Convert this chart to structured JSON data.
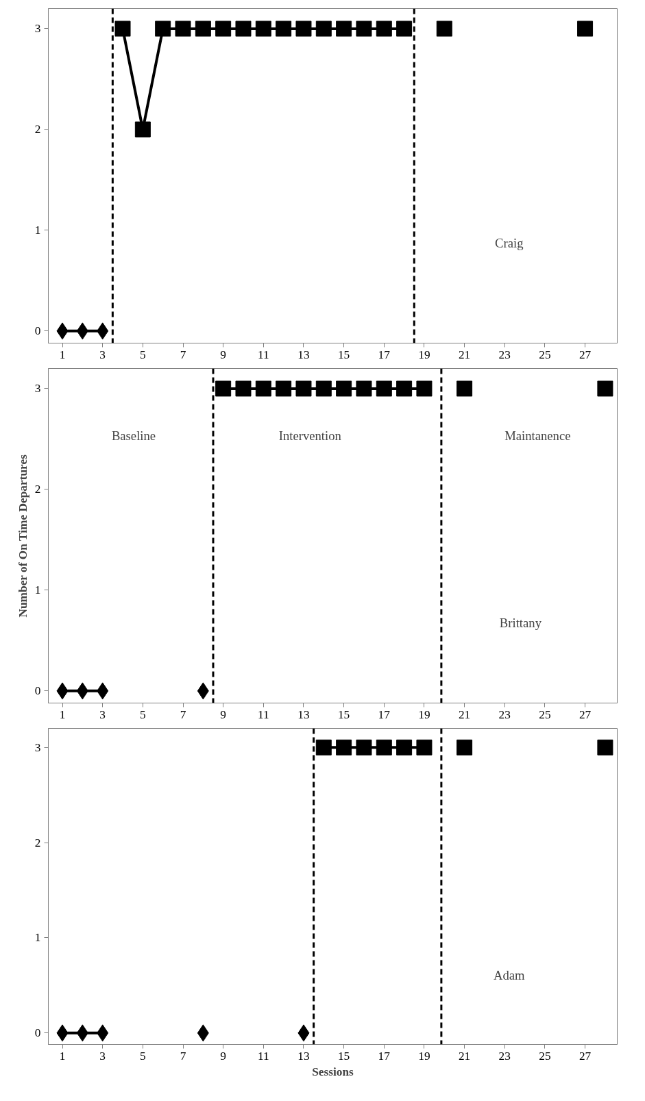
{
  "chart_data": [
    {
      "type": "line",
      "xlim": [
        0.3,
        28.6
      ],
      "ylim": [
        -0.12,
        3.2
      ],
      "xticks": [
        1,
        3,
        5,
        7,
        9,
        11,
        13,
        15,
        17,
        19,
        21,
        23,
        25,
        27
      ],
      "yticks": [
        0,
        1,
        2,
        3
      ],
      "line_style": "solid",
      "series": [
        {
          "marker": "diamond",
          "color": "#000000",
          "x": [
            1,
            2,
            3
          ],
          "values": [
            0,
            0,
            0
          ]
        },
        {
          "marker": "square",
          "color": "#000000",
          "x": [
            4,
            5,
            6,
            7,
            8,
            9,
            10,
            11,
            12,
            13,
            14,
            15,
            16,
            17,
            18
          ],
          "values": [
            3,
            2,
            3,
            3,
            3,
            3,
            3,
            3,
            3,
            3,
            3,
            3,
            3,
            3,
            3
          ]
        },
        {
          "type": "scatter",
          "marker": "square",
          "color": "#000000",
          "x": [
            20,
            27
          ],
          "values": [
            3,
            3
          ]
        }
      ],
      "ref_lines": [
        {
          "axis": "x",
          "value": 3.5,
          "line_style": "dashed",
          "color": "#000000"
        },
        {
          "axis": "x",
          "value": 18.5,
          "line_style": "dashed",
          "color": "#000000"
        }
      ],
      "annotations": [
        "Craig"
      ]
    },
    {
      "type": "line",
      "xlim": [
        0.3,
        28.6
      ],
      "ylim": [
        -0.12,
        3.2
      ],
      "xticks": [
        1,
        3,
        5,
        7,
        9,
        11,
        13,
        15,
        17,
        19,
        21,
        23,
        25,
        27
      ],
      "yticks": [
        0,
        1,
        2,
        3
      ],
      "line_style": "solid",
      "ylabel": "Number of On Time Departures",
      "series": [
        {
          "marker": "diamond",
          "color": "#000000",
          "x": [
            1,
            2,
            3,
            4,
            8
          ],
          "values": [
            0,
            0,
            0,
            null,
            0
          ]
        },
        {
          "marker": "square",
          "color": "#000000",
          "x": [
            9,
            10,
            11,
            12,
            13,
            14,
            15,
            16,
            17,
            18,
            19
          ],
          "values": [
            3,
            3,
            3,
            3,
            3,
            3,
            3,
            3,
            3,
            3,
            3
          ]
        },
        {
          "type": "scatter",
          "marker": "square",
          "color": "#000000",
          "x": [
            21,
            28
          ],
          "values": [
            3,
            3
          ]
        }
      ],
      "ref_lines": [
        {
          "axis": "x",
          "value": 8.5,
          "line_style": "dashed",
          "color": "#000000"
        },
        {
          "axis": "x",
          "value": 19.85,
          "line_style": "dashed",
          "color": "#000000"
        }
      ],
      "annotations": [
        "Baseline",
        "Intervention",
        "Maintanence",
        "Brittany"
      ]
    },
    {
      "type": "line",
      "xlim": [
        0.3,
        28.6
      ],
      "ylim": [
        -0.12,
        3.2
      ],
      "xticks": [
        1,
        3,
        5,
        7,
        9,
        11,
        13,
        15,
        17,
        19,
        21,
        23,
        25,
        27
      ],
      "yticks": [
        0,
        1,
        2,
        3
      ],
      "line_style": "solid",
      "xlabel": "Sessions",
      "series": [
        {
          "marker": "diamond",
          "color": "#000000",
          "x": [
            1,
            2,
            3,
            4,
            8,
            9,
            13
          ],
          "values": [
            0,
            0,
            0,
            null,
            0,
            null,
            0
          ]
        },
        {
          "marker": "square",
          "color": "#000000",
          "x": [
            14,
            15,
            16,
            17,
            18,
            19
          ],
          "values": [
            3,
            3,
            3,
            3,
            3,
            3
          ]
        },
        {
          "type": "scatter",
          "marker": "square",
          "color": "#000000",
          "x": [
            21,
            28
          ],
          "values": [
            3,
            3
          ]
        }
      ],
      "ref_lines": [
        {
          "axis": "x",
          "value": 13.5,
          "line_style": "dashed",
          "color": "#000000"
        },
        {
          "axis": "x",
          "value": 19.85,
          "line_style": "dashed",
          "color": "#000000"
        }
      ],
      "annotations": [
        "Adam"
      ]
    }
  ]
}
